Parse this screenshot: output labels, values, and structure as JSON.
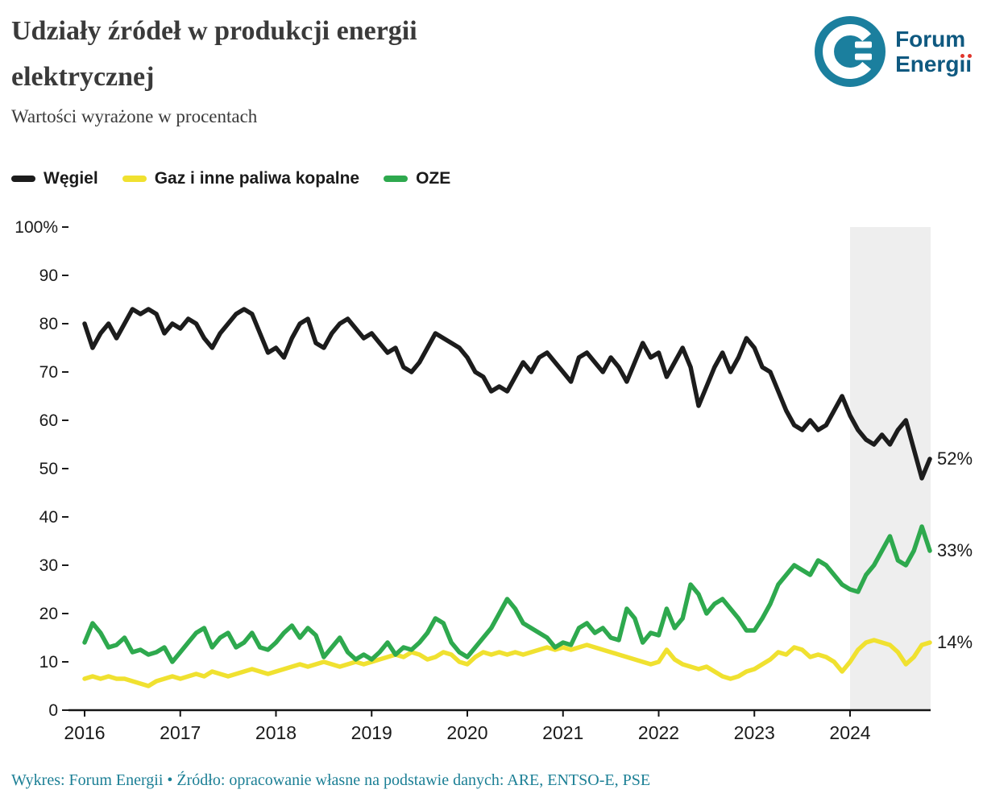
{
  "header": {
    "title_line1": "Udziały źródeł w produkcji energii",
    "title_line2": "elektrycznej",
    "subtitle": "Wartości wyrażone w procentach"
  },
  "logo": {
    "line1": "Forum",
    "line2": "Energii",
    "circle_color": "#1b7f9e",
    "text_color": "#0f5980",
    "dot_color": "#e0352b"
  },
  "footer": {
    "text": "Wykres: Forum Energii • Źródło: opracowanie własne na podstawie danych: ARE, ENTSO-E, PSE"
  },
  "chart_data": {
    "type": "line",
    "title": "Udziały źródeł w produkcji energii elektrycznej",
    "subtitle": "Wartości wyrażone w procentach",
    "x_frequency": "monthly",
    "x_start_year": 2016,
    "x_tick_labels": [
      "2016",
      "2017",
      "2018",
      "2019",
      "2020",
      "2021",
      "2022",
      "2023",
      "2024"
    ],
    "y_ticks": [
      0,
      10,
      20,
      30,
      40,
      50,
      60,
      70,
      80,
      90,
      100
    ],
    "y_tick_labels": [
      "0",
      "10",
      "20",
      "30",
      "40",
      "50",
      "60",
      "70",
      "80",
      "90",
      "100%"
    ],
    "ylim": [
      0,
      100
    ],
    "grid": false,
    "legend_position": "top-left",
    "highlight_band": {
      "from_year": 2024,
      "color": "#eeeeee"
    },
    "series": [
      {
        "name": "Węgiel",
        "color": "#1c1c1c",
        "end_label": "52%",
        "values": [
          80,
          75,
          78,
          80,
          77,
          80,
          83,
          82,
          83,
          82,
          78,
          80,
          79,
          81,
          80,
          77,
          75,
          78,
          80,
          82,
          83,
          82,
          78,
          74,
          75,
          73,
          77,
          80,
          81,
          76,
          75,
          78,
          80,
          81,
          79,
          77,
          78,
          76,
          74,
          75,
          71,
          70,
          72,
          75,
          78,
          77,
          76,
          75,
          73,
          70,
          69,
          66,
          67,
          66,
          69,
          72,
          70,
          73,
          74,
          72,
          70,
          68,
          73,
          74,
          72,
          70,
          73,
          71,
          68,
          72,
          76,
          73,
          74,
          69,
          72,
          75,
          71,
          63,
          67,
          71,
          74,
          70,
          73,
          77,
          75,
          71,
          70,
          66,
          62,
          59,
          58,
          60,
          58,
          59,
          62,
          65,
          61,
          58,
          56,
          55,
          57,
          55,
          58,
          60,
          54,
          48,
          52
        ]
      },
      {
        "name": "Gaz i inne paliwa kopalne",
        "color": "#f0e130",
        "end_label": "14%",
        "values": [
          6.5,
          7,
          6.5,
          7,
          6.5,
          6.5,
          6,
          5.5,
          5,
          6,
          6.5,
          7,
          6.5,
          7,
          7.5,
          7,
          8,
          7.5,
          7,
          7.5,
          8,
          8.5,
          8,
          7.5,
          8,
          8.5,
          9,
          9.5,
          9,
          9.5,
          10,
          9.5,
          9,
          9.5,
          10,
          9.5,
          10,
          10.5,
          11,
          11.5,
          11,
          12,
          11.5,
          10.5,
          11,
          12,
          11.5,
          10,
          9.5,
          11,
          12,
          11.5,
          12,
          11.5,
          12,
          11.5,
          12,
          12.5,
          13,
          12.5,
          13,
          12.5,
          13,
          13.5,
          13,
          12.5,
          12,
          11.5,
          11,
          10.5,
          10,
          9.5,
          10,
          12.5,
          10.5,
          9.5,
          9,
          8.5,
          9,
          8,
          7,
          6.5,
          7,
          8,
          8.5,
          9.5,
          10.5,
          12,
          11.5,
          13,
          12.5,
          11,
          11.5,
          11,
          10,
          8,
          10,
          12.5,
          14,
          14.5,
          14,
          13.5,
          12,
          9.5,
          11,
          13.5,
          14
        ]
      },
      {
        "name": "OZE",
        "color": "#2ea94e",
        "end_label": "33%",
        "values": [
          14,
          18,
          16,
          13,
          13.5,
          15,
          12,
          12.5,
          11.5,
          12,
          13,
          10,
          12,
          14,
          16,
          17,
          13,
          15,
          16,
          13,
          14,
          16,
          13,
          12.5,
          14,
          16,
          17.5,
          15,
          17,
          15.5,
          11,
          13,
          15,
          12,
          10.5,
          11.5,
          10.5,
          12,
          14,
          11.5,
          13,
          12.5,
          14,
          16,
          19,
          18,
          14,
          12,
          11,
          13,
          15,
          17,
          20,
          23,
          21,
          18,
          17,
          16,
          15,
          13,
          14,
          13.5,
          17,
          18,
          16,
          17,
          15,
          14.5,
          21,
          19,
          14,
          16,
          15.5,
          21,
          17,
          19,
          26,
          24,
          20,
          22,
          23,
          21,
          19,
          16.5,
          16.5,
          19,
          22,
          26,
          28,
          30,
          29,
          28,
          31,
          30,
          28,
          26,
          25,
          24.5,
          28,
          30,
          33,
          36,
          31,
          30,
          33,
          38,
          33
        ]
      }
    ]
  }
}
